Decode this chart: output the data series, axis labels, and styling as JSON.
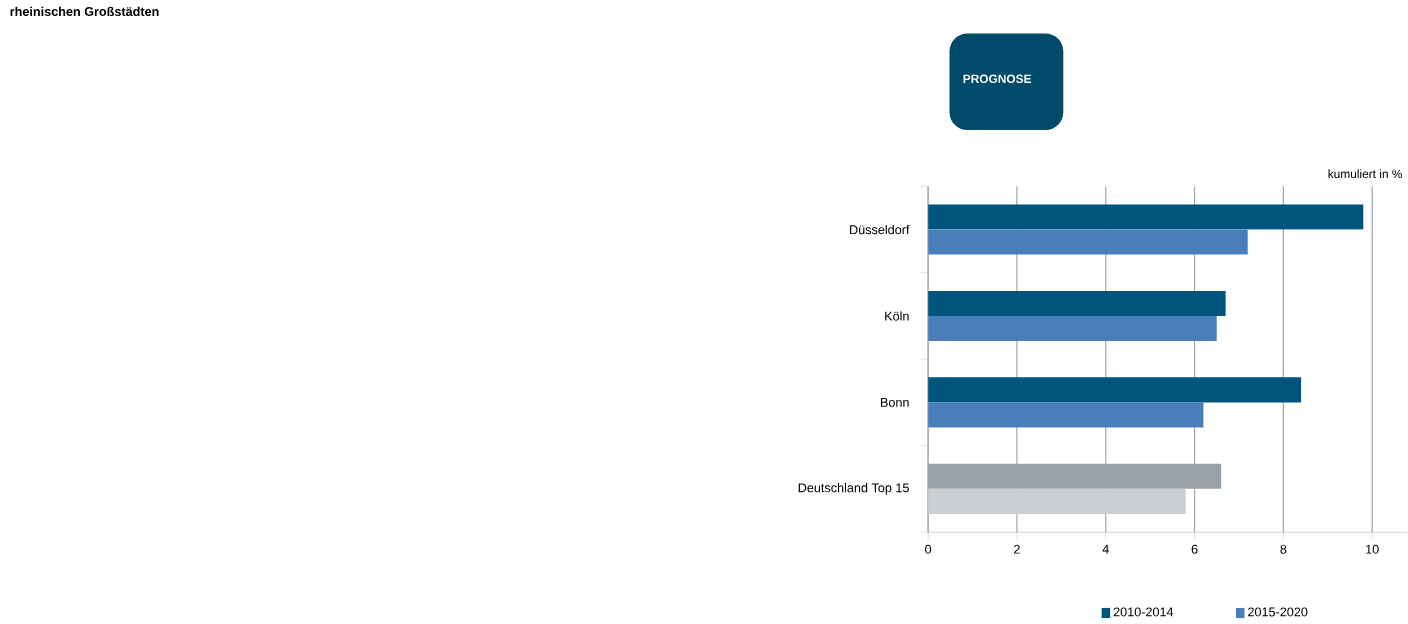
{
  "chart_data": {
    "type": "bar",
    "orientation": "horizontal",
    "title": "rheinischen Großstädten",
    "xlabel": "kumuliert in %",
    "categories": [
      "Düsseldorf",
      "Köln",
      "Bonn",
      "Deutschland Top 15"
    ],
    "series": [
      {
        "name": "2010-2014",
        "color": "#00557f",
        "colors": [
          "#00557f",
          "#00557f",
          "#00557f",
          "#9aa2a9"
        ],
        "values": [
          9.8,
          6.7,
          8.4,
          6.6
        ]
      },
      {
        "name": "2015-2020",
        "color": "#4a7ebb",
        "colors": [
          "#4a7ebb",
          "#4a7ebb",
          "#4a7ebb",
          "#cbcfd4"
        ],
        "values": [
          7.2,
          6.5,
          6.2,
          5.8
        ]
      }
    ],
    "xlim": [
      0,
      10.8
    ],
    "xticks": [
      0,
      2,
      4,
      6,
      8,
      10
    ],
    "grid": "x",
    "legend": "bottom",
    "annotations": [
      "PROGNOSE"
    ]
  }
}
